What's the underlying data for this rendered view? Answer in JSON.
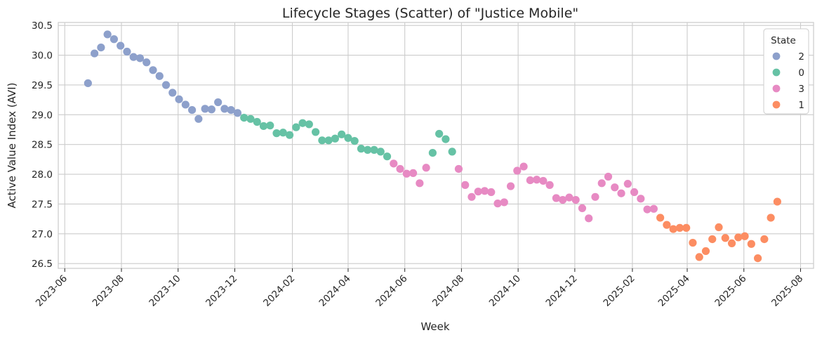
{
  "chart_data": {
    "type": "scatter",
    "title": "Lifecycle Stages (Scatter) of \"Justice Mobile\"",
    "xlabel": "Week",
    "ylabel": "Active Value Index (AVI)",
    "x_ticks": [
      "2023-06",
      "2023-08",
      "2023-10",
      "2023-12",
      "2024-02",
      "2024-04",
      "2024-06",
      "2024-08",
      "2024-10",
      "2024-12",
      "2025-02",
      "2025-04",
      "2025-06",
      "2025-08"
    ],
    "xlim": [
      "2023-05-25",
      "2025-08-15"
    ],
    "y_ticks": [
      26.5,
      27.0,
      27.5,
      28.0,
      28.5,
      29.0,
      29.5,
      30.0,
      30.5
    ],
    "ylim": [
      26.42,
      30.55
    ],
    "grid": true,
    "legend": {
      "title": "State",
      "placement": "top-right"
    },
    "series": [
      {
        "name": "2",
        "color": "#8da0cb",
        "points": [
          [
            "2023-06-26",
            29.53
          ],
          [
            "2023-07-03",
            30.03
          ],
          [
            "2023-07-10",
            30.13
          ],
          [
            "2023-07-17",
            30.35
          ],
          [
            "2023-07-24",
            30.27
          ],
          [
            "2023-07-31",
            30.16
          ],
          [
            "2023-08-07",
            30.06
          ],
          [
            "2023-08-14",
            29.97
          ],
          [
            "2023-08-21",
            29.95
          ],
          [
            "2023-08-28",
            29.88
          ],
          [
            "2023-09-04",
            29.75
          ],
          [
            "2023-09-11",
            29.65
          ],
          [
            "2023-09-18",
            29.5
          ],
          [
            "2023-09-25",
            29.37
          ],
          [
            "2023-10-02",
            29.26
          ],
          [
            "2023-10-09",
            29.17
          ],
          [
            "2023-10-16",
            29.08
          ],
          [
            "2023-10-23",
            28.93
          ],
          [
            "2023-10-30",
            29.1
          ],
          [
            "2023-11-06",
            29.09
          ],
          [
            "2023-11-13",
            29.21
          ],
          [
            "2023-11-20",
            29.1
          ],
          [
            "2023-11-27",
            29.08
          ],
          [
            "2023-12-04",
            29.03
          ]
        ]
      },
      {
        "name": "0",
        "color": "#66c2a5",
        "points": [
          [
            "2023-12-11",
            28.95
          ],
          [
            "2023-12-18",
            28.93
          ],
          [
            "2023-12-25",
            28.88
          ],
          [
            "2024-01-01",
            28.81
          ],
          [
            "2024-01-08",
            28.82
          ],
          [
            "2024-01-15",
            28.69
          ],
          [
            "2024-01-22",
            28.7
          ],
          [
            "2024-01-29",
            28.66
          ],
          [
            "2024-02-05",
            28.79
          ],
          [
            "2024-02-12",
            28.86
          ],
          [
            "2024-02-19",
            28.84
          ],
          [
            "2024-02-26",
            28.71
          ],
          [
            "2024-03-04",
            28.57
          ],
          [
            "2024-03-11",
            28.57
          ],
          [
            "2024-03-18",
            28.6
          ],
          [
            "2024-03-25",
            28.67
          ],
          [
            "2024-04-01",
            28.61
          ],
          [
            "2024-04-08",
            28.56
          ],
          [
            "2024-04-15",
            28.43
          ],
          [
            "2024-04-22",
            28.41
          ],
          [
            "2024-04-29",
            28.41
          ],
          [
            "2024-05-06",
            28.38
          ],
          [
            "2024-05-13",
            28.3
          ],
          [
            "2024-07-01",
            28.36
          ],
          [
            "2024-07-08",
            28.68
          ],
          [
            "2024-07-15",
            28.59
          ],
          [
            "2024-07-22",
            28.38
          ]
        ]
      },
      {
        "name": "3",
        "color": "#e78ac3",
        "points": [
          [
            "2024-05-20",
            28.18
          ],
          [
            "2024-05-27",
            28.09
          ],
          [
            "2024-06-03",
            28.01
          ],
          [
            "2024-06-10",
            28.02
          ],
          [
            "2024-06-17",
            27.85
          ],
          [
            "2024-06-24",
            28.11
          ],
          [
            "2024-07-29",
            28.09
          ],
          [
            "2024-08-05",
            27.82
          ],
          [
            "2024-08-12",
            27.62
          ],
          [
            "2024-08-19",
            27.71
          ],
          [
            "2024-08-26",
            27.72
          ],
          [
            "2024-09-02",
            27.7
          ],
          [
            "2024-09-09",
            27.51
          ],
          [
            "2024-09-16",
            27.53
          ],
          [
            "2024-09-23",
            27.8
          ],
          [
            "2024-09-30",
            28.06
          ],
          [
            "2024-10-07",
            28.13
          ],
          [
            "2024-10-14",
            27.9
          ],
          [
            "2024-10-21",
            27.91
          ],
          [
            "2024-10-28",
            27.89
          ],
          [
            "2024-11-04",
            27.82
          ],
          [
            "2024-11-11",
            27.6
          ],
          [
            "2024-11-18",
            27.57
          ],
          [
            "2024-11-25",
            27.61
          ],
          [
            "2024-12-02",
            27.57
          ],
          [
            "2024-12-09",
            27.43
          ],
          [
            "2024-12-16",
            27.26
          ],
          [
            "2024-12-23",
            27.62
          ],
          [
            "2024-12-30",
            27.85
          ],
          [
            "2025-01-06",
            27.96
          ],
          [
            "2025-01-13",
            27.78
          ],
          [
            "2025-01-20",
            27.68
          ],
          [
            "2025-01-27",
            27.84
          ],
          [
            "2025-02-03",
            27.7
          ],
          [
            "2025-02-10",
            27.59
          ],
          [
            "2025-02-17",
            27.41
          ],
          [
            "2025-02-24",
            27.42
          ]
        ]
      },
      {
        "name": "1",
        "color": "#fc8d62",
        "points": [
          [
            "2025-03-03",
            27.27
          ],
          [
            "2025-03-10",
            27.15
          ],
          [
            "2025-03-17",
            27.08
          ],
          [
            "2025-03-24",
            27.1
          ],
          [
            "2025-03-31",
            27.1
          ],
          [
            "2025-04-07",
            26.85
          ],
          [
            "2025-04-14",
            26.61
          ],
          [
            "2025-04-21",
            26.71
          ],
          [
            "2025-04-28",
            26.91
          ],
          [
            "2025-05-05",
            27.11
          ],
          [
            "2025-05-12",
            26.93
          ],
          [
            "2025-05-19",
            26.84
          ],
          [
            "2025-05-26",
            26.94
          ],
          [
            "2025-06-02",
            26.96
          ],
          [
            "2025-06-09",
            26.83
          ],
          [
            "2025-06-16",
            26.59
          ],
          [
            "2025-06-23",
            26.91
          ],
          [
            "2025-06-30",
            27.27
          ],
          [
            "2025-07-07",
            27.54
          ]
        ]
      }
    ]
  }
}
